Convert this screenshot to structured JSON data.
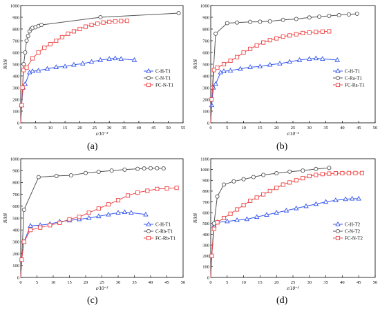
{
  "figure": {
    "captions": [
      "(a)",
      "(b)",
      "(c)",
      "(d)"
    ]
  },
  "chart_data": [
    {
      "type": "line",
      "panel": "(a)",
      "xlabel": "ε/10⁻³",
      "ylabel": "N/kN",
      "xlim": [
        0,
        55
      ],
      "ylim": [
        0,
        1000
      ],
      "xticks": [
        0,
        5,
        10,
        15,
        20,
        25,
        30,
        35,
        40,
        45,
        50,
        55
      ],
      "yticks": [
        0,
        100,
        200,
        300,
        400,
        500,
        600,
        700,
        800,
        900,
        1000
      ],
      "grid": false,
      "legend_position": "right-middle",
      "series": [
        {
          "name": "C-H-T1",
          "color": "#3355ee",
          "marker": "triangle",
          "x": [
            0,
            0.3,
            0.8,
            1.5,
            3,
            4,
            6,
            9,
            12,
            15,
            18,
            21,
            24,
            27,
            30,
            32,
            34,
            38.5
          ],
          "y": [
            0,
            150,
            300,
            330,
            430,
            440,
            445,
            460,
            475,
            480,
            495,
            505,
            520,
            535,
            545,
            550,
            545,
            535
          ]
        },
        {
          "name": "C-N-T1",
          "color": "#555555",
          "marker": "circle",
          "x": [
            0,
            0.3,
            0.6,
            1,
            1.5,
            2,
            2.5,
            3,
            3.5,
            4,
            5,
            6,
            7,
            27,
            53.5
          ],
          "y": [
            0,
            150,
            300,
            500,
            600,
            700,
            740,
            780,
            800,
            810,
            815,
            825,
            835,
            900,
            935
          ]
        },
        {
          "name": "FC-N-T1",
          "color": "#ee4444",
          "marker": "square",
          "x": [
            0,
            0.3,
            0.6,
            1,
            2,
            4,
            6,
            8,
            10,
            12,
            14,
            16,
            18,
            20,
            22,
            24,
            26,
            28,
            30,
            32,
            34,
            36
          ],
          "y": [
            0,
            150,
            300,
            450,
            470,
            550,
            600,
            640,
            670,
            700,
            730,
            760,
            780,
            800,
            820,
            835,
            845,
            855,
            860,
            865,
            868,
            870
          ]
        }
      ]
    },
    {
      "type": "line",
      "panel": "(b)",
      "xlabel": "ε/10⁻³",
      "ylabel": "N/kN",
      "xlim": [
        0,
        50
      ],
      "ylim": [
        0,
        1000
      ],
      "xticks": [
        0,
        5,
        10,
        15,
        20,
        25,
        30,
        35,
        40,
        45,
        50
      ],
      "yticks": [
        0,
        100,
        200,
        300,
        400,
        500,
        600,
        700,
        800,
        900,
        1000
      ],
      "grid": false,
      "legend_position": "right-middle",
      "series": [
        {
          "name": "C-H-T1",
          "color": "#3355ee",
          "marker": "triangle",
          "x": [
            0,
            0.3,
            0.8,
            1.5,
            3,
            4,
            6,
            9,
            12,
            15,
            18,
            21,
            24,
            27,
            30,
            32,
            34,
            38.5
          ],
          "y": [
            0,
            150,
            300,
            330,
            430,
            440,
            445,
            460,
            475,
            480,
            495,
            505,
            520,
            535,
            545,
            550,
            545,
            535
          ]
        },
        {
          "name": "C-Ra-T1",
          "color": "#555555",
          "marker": "circle",
          "x": [
            0,
            0.5,
            1.5,
            5,
            8,
            12,
            15,
            18,
            22,
            26,
            30,
            33,
            36,
            39,
            42,
            44.5
          ],
          "y": [
            0,
            300,
            760,
            850,
            855,
            860,
            862,
            865,
            878,
            885,
            898,
            905,
            912,
            918,
            924,
            930
          ]
        },
        {
          "name": "FC-Ra-T1",
          "color": "#ee4444",
          "marker": "square",
          "x": [
            0,
            0.3,
            1,
            2,
            4,
            6,
            8,
            10,
            12,
            14,
            16,
            18,
            20,
            22,
            24,
            26,
            28,
            30,
            32,
            34,
            36
          ],
          "y": [
            0,
            200,
            450,
            470,
            500,
            530,
            560,
            600,
            630,
            660,
            685,
            705,
            720,
            735,
            745,
            755,
            765,
            770,
            775,
            778,
            780
          ]
        }
      ]
    },
    {
      "type": "line",
      "panel": "(c)",
      "xlabel": "ε/10⁻³",
      "ylabel": "N/kN",
      "xlim": [
        0,
        50
      ],
      "ylim": [
        0,
        1000
      ],
      "xticks": [
        0,
        5,
        10,
        15,
        20,
        25,
        30,
        35,
        40,
        45,
        50
      ],
      "yticks": [
        0,
        100,
        200,
        300,
        400,
        500,
        600,
        700,
        800,
        900,
        1000
      ],
      "grid": false,
      "legend_position": "right-middle",
      "series": [
        {
          "name": "C-H-T1",
          "color": "#3355ee",
          "marker": "triangle",
          "x": [
            0,
            0.3,
            1,
            3,
            6,
            9,
            12,
            15,
            18,
            21,
            24,
            27,
            30,
            32,
            34,
            38.5
          ],
          "y": [
            0,
            150,
            300,
            435,
            440,
            450,
            470,
            480,
            490,
            500,
            515,
            530,
            545,
            550,
            545,
            530
          ]
        },
        {
          "name": "C-Rb-T1",
          "color": "#555555",
          "marker": "circle",
          "x": [
            0,
            0.3,
            1,
            5.5,
            11,
            15.5,
            20,
            24,
            28,
            32,
            36,
            38,
            40,
            42,
            44
          ],
          "y": [
            0,
            150,
            570,
            845,
            855,
            860,
            880,
            890,
            900,
            908,
            915,
            918,
            920,
            920,
            918
          ]
        },
        {
          "name": "FC-Rb-T1",
          "color": "#ee4444",
          "marker": "square",
          "x": [
            0,
            0.3,
            1,
            3,
            6,
            9,
            12,
            15,
            18,
            21,
            24,
            27,
            30,
            33,
            36,
            39,
            42,
            45,
            48
          ],
          "y": [
            0,
            150,
            300,
            400,
            420,
            440,
            460,
            490,
            510,
            545,
            580,
            615,
            650,
            690,
            715,
            730,
            745,
            750,
            755
          ]
        }
      ]
    },
    {
      "type": "line",
      "panel": "(d)",
      "xlabel": "ε/10⁻³",
      "ylabel": "N/kN",
      "xlim": [
        0,
        50
      ],
      "ylim": [
        0,
        1100
      ],
      "xticks": [
        0,
        5,
        10,
        15,
        20,
        25,
        30,
        35,
        40,
        45,
        50
      ],
      "yticks": [
        0,
        100,
        200,
        300,
        400,
        500,
        600,
        700,
        800,
        900,
        1000,
        1100
      ],
      "grid": false,
      "legend_position": "right-middle",
      "series": [
        {
          "name": "C-H-T2",
          "color": "#3355ee",
          "marker": "triangle",
          "x": [
            0,
            0.3,
            1,
            2,
            5,
            8,
            11,
            14,
            17,
            20,
            23,
            26,
            29,
            32,
            35,
            38,
            41,
            43,
            45
          ],
          "y": [
            0,
            200,
            480,
            510,
            520,
            530,
            540,
            560,
            580,
            600,
            620,
            640,
            660,
            680,
            700,
            715,
            725,
            730,
            730
          ]
        },
        {
          "name": "C-N-T2",
          "color": "#555555",
          "marker": "circle",
          "x": [
            0,
            0.3,
            1,
            2,
            4,
            7,
            10,
            13,
            16,
            20,
            24,
            28,
            32,
            36
          ],
          "y": [
            0,
            200,
            500,
            750,
            860,
            890,
            910,
            930,
            950,
            965,
            980,
            990,
            1005,
            1015
          ]
        },
        {
          "name": "FC-N-T2",
          "color": "#ee4444",
          "marker": "square",
          "x": [
            0,
            0.3,
            1,
            2,
            4,
            6,
            8,
            10,
            12,
            14,
            16,
            18,
            20,
            22,
            24,
            26,
            28,
            30,
            32,
            34,
            36,
            38,
            40,
            42,
            44,
            46
          ],
          "y": [
            0,
            200,
            450,
            510,
            550,
            590,
            630,
            670,
            710,
            740,
            770,
            800,
            830,
            860,
            880,
            900,
            920,
            940,
            950,
            958,
            962,
            965,
            966,
            967,
            967,
            967
          ]
        }
      ]
    }
  ]
}
